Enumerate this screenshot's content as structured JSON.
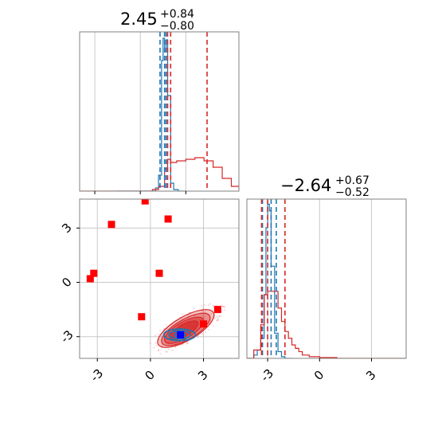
{
  "colors": {
    "red": "#d62728",
    "blue": "#1f77b4",
    "marker_red": "#ff0000",
    "marker_blue": "#0000ff",
    "grid": "#c8c8c8"
  },
  "chart_data": [
    {
      "type": "histogram",
      "panel": "param1-marginal",
      "title": {
        "value": "2.45",
        "plus": "+0.84",
        "minus": "−0.80"
      },
      "xlim": [
        -4,
        6.5
      ],
      "grid_x": [
        -3,
        0,
        3
      ],
      "series": [
        {
          "color": "blue",
          "style": "step",
          "x": [
            -1.5,
            1.0,
            1.2,
            1.4,
            1.5,
            1.6,
            1.7,
            1.8,
            2.0,
            2.2,
            2.5,
            3.0
          ],
          "y": [
            0,
            0.02,
            0.1,
            0.82,
            0.96,
            0.88,
            0.95,
            0.6,
            0.05,
            0.01,
            0,
            0
          ]
        },
        {
          "color": "red",
          "style": "step",
          "x": [
            -4,
            0.8,
            1.2,
            1.6,
            1.8,
            2.0,
            2.4,
            3.0,
            3.6,
            4.2,
            4.8,
            5.4,
            6.0,
            6.5
          ],
          "y": [
            0,
            0.01,
            0.03,
            0.14,
            0.2,
            0.18,
            0.19,
            0.2,
            0.21,
            0.19,
            0.15,
            0.08,
            0.03,
            0.01
          ]
        }
      ],
      "vlines": [
        {
          "x": 1.3,
          "color": "blue"
        },
        {
          "x": 1.6,
          "color": "blue"
        },
        {
          "x": 1.7,
          "color": "blue"
        },
        {
          "x": 1.8,
          "color": "red"
        },
        {
          "x": 2.0,
          "color": "red"
        },
        {
          "x": 4.4,
          "color": "red"
        }
      ]
    },
    {
      "type": "histogram",
      "panel": "param2-marginal",
      "title": {
        "value": "−2.64",
        "plus": "+0.67",
        "minus": "−0.52"
      },
      "xlim": [
        -4.2,
        5.0
      ],
      "xticks": [
        "-3",
        "0",
        "3"
      ],
      "xtick_values": [
        -3,
        0,
        3
      ],
      "series": [
        {
          "color": "blue",
          "style": "step",
          "x": [
            -4.2,
            -3.8,
            -3.6,
            -3.4,
            -3.2,
            -3.1,
            -3.0,
            -2.9,
            -2.8,
            -2.6,
            -2.4,
            -2.2,
            -2.0,
            -1.6
          ],
          "y": [
            0,
            0.02,
            0.05,
            0.12,
            0.38,
            0.78,
            0.92,
            0.88,
            0.55,
            0.15,
            0.04,
            0.01,
            0,
            0
          ]
        },
        {
          "color": "red",
          "style": "step",
          "x": [
            -4.2,
            -3.8,
            -3.4,
            -3.2,
            -3.0,
            -2.6,
            -2.4,
            -2.2,
            -2.0,
            -1.8,
            -1.6,
            -1.4,
            -1.2,
            -1.0,
            -0.6,
            0,
            1.0,
            5.0
          ],
          "y": [
            0,
            0.05,
            0.2,
            0.38,
            0.4,
            0.4,
            0.3,
            0.22,
            0.16,
            0.12,
            0.08,
            0.06,
            0.04,
            0.02,
            0.01,
            0.005,
            0,
            0
          ]
        }
      ],
      "vlines": [
        {
          "x": -3.3,
          "color": "blue"
        },
        {
          "x": -2.8,
          "color": "blue"
        },
        {
          "x": -2.5,
          "color": "blue"
        },
        {
          "x": -3.35,
          "color": "red"
        },
        {
          "x": -3.0,
          "color": "red"
        },
        {
          "x": -2.0,
          "color": "red"
        }
      ]
    },
    {
      "type": "scatter",
      "panel": "joint",
      "xlim": [
        -4,
        5.0
      ],
      "ylim": [
        -4.2,
        4.6
      ],
      "xticks": [
        "-3",
        "0",
        "3"
      ],
      "xtick_values": [
        -3,
        0,
        3
      ],
      "yticks": [
        "3",
        "0",
        "-3"
      ],
      "ytick_values": [
        3,
        0,
        -3
      ],
      "red_contours": [
        {
          "cx": 2.0,
          "cy": -2.55,
          "rx": 1.8,
          "ry": 0.65,
          "angle": 30,
          "opacity": 0.28
        },
        {
          "cx": 2.0,
          "cy": -2.6,
          "rx": 1.55,
          "ry": 0.55,
          "angle": 30,
          "opacity": 0.35
        },
        {
          "cx": 1.9,
          "cy": -2.65,
          "rx": 1.25,
          "ry": 0.45,
          "angle": 30,
          "opacity": 0.5
        },
        {
          "cx": 1.9,
          "cy": -2.65,
          "rx": 0.9,
          "ry": 0.32,
          "angle": 30,
          "opacity": 0.7
        }
      ],
      "blue_contours": [
        {
          "cx": 1.65,
          "cy": -2.9,
          "rx": 0.9,
          "ry": 0.32,
          "angle": 0
        },
        {
          "cx": 1.65,
          "cy": -2.9,
          "rx": 0.6,
          "ry": 0.22,
          "angle": 0
        },
        {
          "cx": 1.65,
          "cy": -2.9,
          "rx": 0.3,
          "ry": 0.12,
          "angle": 0
        }
      ],
      "red_points": [
        {
          "x": -0.3,
          "y": 4.5
        },
        {
          "x": 1.0,
          "y": 3.5
        },
        {
          "x": -2.2,
          "y": 3.2
        },
        {
          "x": -3.2,
          "y": 0.5
        },
        {
          "x": -3.4,
          "y": 0.2
        },
        {
          "x": 0.5,
          "y": 0.5
        },
        {
          "x": -0.5,
          "y": -1.9
        },
        {
          "x": 3.8,
          "y": -1.5
        },
        {
          "x": 3.0,
          "y": -2.3
        }
      ],
      "blue_points": [
        {
          "x": 1.7,
          "y": -2.9
        }
      ]
    }
  ]
}
